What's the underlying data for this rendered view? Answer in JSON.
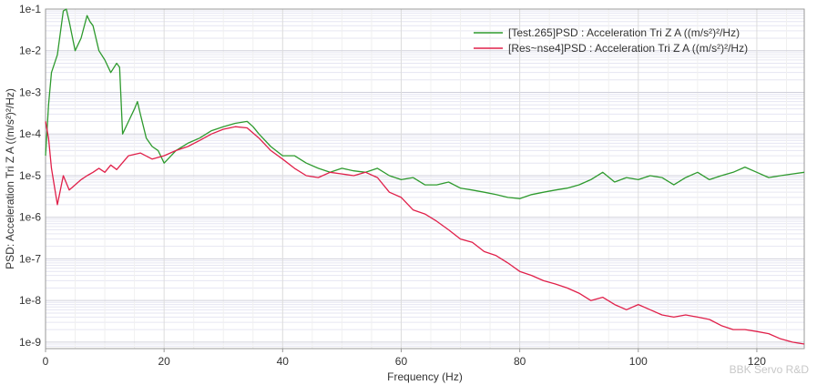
{
  "chart_data": {
    "type": "line",
    "x_scale": "linear",
    "y_scale": "log",
    "xlabel": "Frequency (Hz)",
    "ylabel": "PSD: Acceleration Tri Z A ((m/s²)²/Hz)",
    "xlim": [
      0,
      128
    ],
    "ylim": [
      7e-10,
      0.1
    ],
    "x_ticks": [
      "0",
      "20",
      "40",
      "60",
      "80",
      "100",
      "120"
    ],
    "y_ticks": [
      "1e-9",
      "1e-8",
      "1e-7",
      "1e-6",
      "1e-5",
      "1e-4",
      "1e-3",
      "1e-2",
      "1e-1"
    ],
    "grid": true,
    "legend_position": "top-right",
    "watermark": "BBK Servo R&D",
    "series": [
      {
        "name": "[Test.265]PSD : Acceleration Tri Z A ((m/s²)²/Hz)",
        "color": "#2e9a2e",
        "x": [
          0,
          0.5,
          1,
          2,
          3,
          3.5,
          4,
          5,
          6,
          7,
          7.5,
          8,
          9,
          10,
          11,
          12,
          12.5,
          13,
          14,
          15,
          15.5,
          16,
          17,
          18,
          19,
          20,
          22,
          24,
          26,
          28,
          30,
          32,
          34,
          35,
          36,
          38,
          40,
          42,
          44,
          46,
          48,
          50,
          52,
          54,
          56,
          58,
          60,
          62,
          64,
          66,
          68,
          70,
          72,
          74,
          76,
          78,
          80,
          82,
          84,
          86,
          88,
          90,
          92,
          94,
          96,
          98,
          100,
          102,
          104,
          106,
          108,
          110,
          112,
          114,
          116,
          118,
          120,
          122,
          124,
          126,
          128
        ],
        "y": [
          3e-05,
          0.0005,
          0.003,
          0.008,
          0.09,
          0.1,
          0.05,
          0.01,
          0.02,
          0.07,
          0.05,
          0.04,
          0.01,
          0.006,
          0.003,
          0.005,
          0.004,
          0.0001,
          0.0002,
          0.0004,
          0.0006,
          0.0003,
          8e-05,
          5e-05,
          4e-05,
          2e-05,
          4e-05,
          6e-05,
          8e-05,
          0.00012,
          0.00015,
          0.00018,
          0.0002,
          0.00015,
          0.0001,
          5e-05,
          3e-05,
          3e-05,
          2e-05,
          1.5e-05,
          1.2e-05,
          1.5e-05,
          1.3e-05,
          1.2e-05,
          1.5e-05,
          1e-05,
          8e-06,
          9e-06,
          6e-06,
          6e-06,
          7e-06,
          5e-06,
          4.5e-06,
          4e-06,
          3.5e-06,
          3e-06,
          2.8e-06,
          3.5e-06,
          4e-06,
          4.5e-06,
          5e-06,
          6e-06,
          8e-06,
          1.2e-05,
          7e-06,
          9e-06,
          8e-06,
          1e-05,
          9e-06,
          6e-06,
          9e-06,
          1.2e-05,
          8e-06,
          1e-05,
          1.2e-05,
          1.6e-05,
          1.2e-05,
          9e-06,
          1e-05,
          1.1e-05,
          1.2e-05
        ]
      },
      {
        "name": "[Res~nse4]PSD : Acceleration Tri Z A ((m/s²)²/Hz)",
        "color": "#e0204a",
        "x": [
          0,
          0.5,
          1,
          2,
          3,
          4,
          5,
          6,
          7,
          8,
          9,
          10,
          11,
          12,
          14,
          16,
          18,
          20,
          22,
          24,
          26,
          28,
          30,
          32,
          34,
          36,
          38,
          40,
          42,
          44,
          46,
          48,
          50,
          52,
          54,
          56,
          58,
          60,
          62,
          64,
          66,
          68,
          70,
          72,
          74,
          76,
          78,
          80,
          82,
          84,
          86,
          88,
          90,
          92,
          94,
          96,
          98,
          100,
          102,
          104,
          106,
          108,
          110,
          112,
          114,
          116,
          118,
          120,
          122,
          124,
          126,
          128
        ],
        "y": [
          0.0002,
          8e-05,
          1.5e-05,
          2e-06,
          1e-05,
          4.5e-06,
          6e-06,
          8e-06,
          1e-05,
          1.2e-05,
          1.5e-05,
          1.2e-05,
          1.8e-05,
          1.4e-05,
          3e-05,
          3.5e-05,
          2.5e-05,
          3e-05,
          4e-05,
          5e-05,
          7e-05,
          0.0001,
          0.00013,
          0.00015,
          0.00014,
          8e-05,
          4e-05,
          2.5e-05,
          1.5e-05,
          1e-05,
          9e-06,
          1.2e-05,
          1.1e-05,
          1e-05,
          1.2e-05,
          9e-06,
          4e-06,
          3e-06,
          1.5e-06,
          1.2e-06,
          8e-07,
          5e-07,
          3e-07,
          2.5e-07,
          1.5e-07,
          1.2e-07,
          8e-08,
          5e-08,
          4e-08,
          3e-08,
          2.5e-08,
          2e-08,
          1.5e-08,
          1e-08,
          1.2e-08,
          8e-09,
          6e-09,
          8e-09,
          6e-09,
          4.5e-09,
          4e-09,
          4.5e-09,
          4e-09,
          3.5e-09,
          2.5e-09,
          2e-09,
          2e-09,
          1.8e-09,
          1.6e-09,
          1.2e-09,
          1e-09,
          9e-10
        ]
      }
    ]
  }
}
